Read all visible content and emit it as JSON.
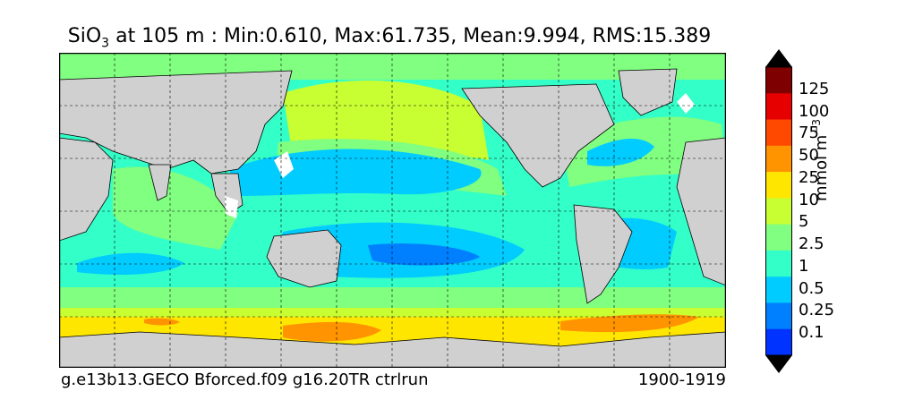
{
  "title": {
    "prefix": "SiO",
    "subscript": "3",
    "rest": " at 105 m : Min:0.610, Max:61.735, Mean:9.994, RMS:15.389"
  },
  "footer": {
    "left": "g.e13b13.GECO Bforced.f09 g16.20TR ctrlrun",
    "right": "1900-1919"
  },
  "colorbar": {
    "units_main": "mmol m",
    "units_sup": "−3",
    "labels": [
      "125",
      "100",
      "75",
      "50",
      "25",
      "10",
      "5",
      "2.5",
      "1",
      "0.5",
      "0.25",
      "0.1"
    ],
    "colors": [
      "#00007f",
      "#0000cd",
      "#0033ff",
      "#007fff",
      "#00ccff",
      "#33ffc8",
      "#80ff80",
      "#c8ff33",
      "#ffe600",
      "#ff9400",
      "#ff4800",
      "#e60000",
      "#7f0000"
    ],
    "land_color": "#d0d0d0",
    "missing_color": "#ffffff"
  }
}
